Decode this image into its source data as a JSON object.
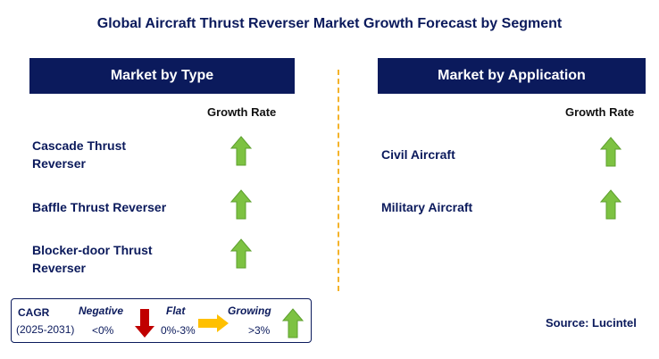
{
  "title": "Global Aircraft Thrust Reverser Market Growth Forecast by Segment",
  "left_panel": {
    "header": "Market by Type",
    "column_label": "Growth Rate",
    "segments": [
      {
        "label_line1": "Cascade Thrust",
        "label_line2": "Reverser",
        "trend": "growing"
      },
      {
        "label_line1": "Baffle Thrust Reverser",
        "label_line2": "",
        "trend": "growing"
      },
      {
        "label_line1": "Blocker-door Thrust",
        "label_line2": "Reverser",
        "trend": "growing"
      }
    ]
  },
  "right_panel": {
    "header": "Market by Application",
    "column_label": "Growth Rate",
    "segments": [
      {
        "label_line1": "Civil Aircraft",
        "trend": "growing"
      },
      {
        "label_line1": "Military Aircraft",
        "trend": "growing"
      }
    ]
  },
  "legend": {
    "cagr_label": "CAGR",
    "period": "(2025-2031)",
    "negative_label": "Negative",
    "negative_range": "<0%",
    "flat_label": "Flat",
    "flat_range": "0%-3%",
    "growing_label": "Growing",
    "growing_range": ">3%"
  },
  "source": "Source: Lucintel",
  "colors": {
    "navy": "#0b1a5c",
    "green_arrow": "#7dc242",
    "red_arrow": "#c00000",
    "yellow_arrow": "#ffc000",
    "divider": "#f4b32a"
  },
  "icons": {
    "growing": "up-arrow-icon",
    "negative": "down-arrow-icon",
    "flat": "right-arrow-icon"
  }
}
